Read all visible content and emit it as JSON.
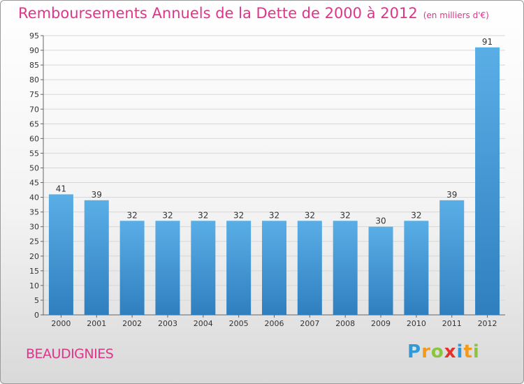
{
  "title": "Remboursements Annuels de la Dette de 2000 à 2012",
  "subtitle": "(en milliers d'€)",
  "place": "BEAUDIGNIES",
  "logo": {
    "text": "Proxiti",
    "letters": [
      {
        "char": "P",
        "color": "#2f9ad8"
      },
      {
        "char": "r",
        "color": "#f39a1a"
      },
      {
        "char": "o",
        "color": "#8bc43f"
      },
      {
        "char": "x",
        "color": "#e4322b"
      },
      {
        "char": "i",
        "color": "#2f9ad8"
      },
      {
        "char": "t",
        "color": "#f39a1a"
      },
      {
        "char": "i",
        "color": "#8bc43f"
      }
    ]
  },
  "colors": {
    "accent": "#e0348a",
    "bar_top": "#5aaee6",
    "bar_bottom": "#2f7fbf",
    "grid": "#d7d7d7",
    "axis_text": "#333333"
  },
  "chart_data": {
    "type": "bar",
    "categories": [
      "2000",
      "2001",
      "2002",
      "2003",
      "2004",
      "2005",
      "2006",
      "2007",
      "2008",
      "2009",
      "2010",
      "2011",
      "2012"
    ],
    "values": [
      41,
      39,
      32,
      32,
      32,
      32,
      32,
      32,
      32,
      30,
      32,
      39,
      91
    ],
    "data_labels": [
      "41",
      "39",
      "32",
      "32",
      "32",
      "32",
      "32",
      "32",
      "32",
      "30",
      "32",
      "39",
      "91"
    ],
    "ylim": [
      0,
      95
    ],
    "yticks": [
      0,
      5,
      10,
      15,
      20,
      25,
      30,
      35,
      40,
      45,
      50,
      55,
      60,
      65,
      70,
      75,
      80,
      85,
      90,
      95
    ],
    "grid": true,
    "xlabel": "",
    "ylabel": ""
  }
}
